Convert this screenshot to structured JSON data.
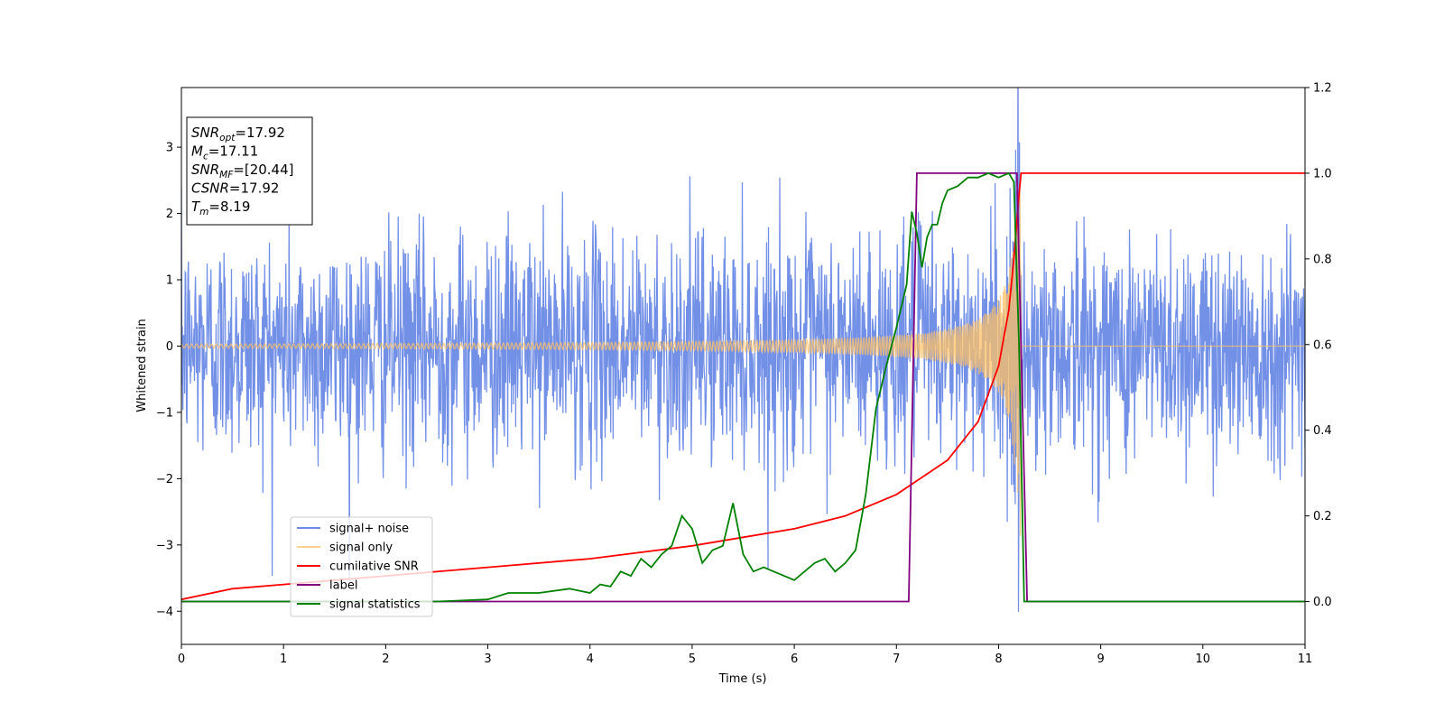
{
  "chart_data": {
    "type": "line",
    "xlabel": "Time (s)",
    "ylabel": "Whitened strain",
    "xlim": [
      0,
      11
    ],
    "ylim": [
      -4.5,
      3.9
    ],
    "y2lim": [
      -0.1,
      1.2
    ],
    "x_ticks": [
      "0",
      "1",
      "2",
      "3",
      "4",
      "5",
      "6",
      "7",
      "8",
      "9",
      "10",
      "11"
    ],
    "y_ticks": [
      "−4",
      "−3",
      "−2",
      "−1",
      "0",
      "1",
      "2",
      "3"
    ],
    "y2_ticks": [
      "0.0",
      "0.2",
      "0.4",
      "0.6",
      "0.8",
      "1.0",
      "1.2"
    ],
    "grid": false,
    "legend_position": "lower-left",
    "annotation": {
      "lines": [
        {
          "sym": "SNR",
          "sub": "opt",
          "rest": "=17.92"
        },
        {
          "sym": "M",
          "sub": "c",
          "rest": "=17.11"
        },
        {
          "sym": "SNR",
          "sub": "MF",
          "rest": "=[20.44]"
        },
        {
          "sym": "CSNR",
          "sub": "",
          "rest": "=17.92"
        },
        {
          "sym": "T",
          "sub": "m",
          "rest": "=8.19"
        }
      ]
    },
    "series": [
      {
        "name": "signal+ noise",
        "color": "#6b8ae6",
        "axis": "left",
        "description": "white noise, std ~1, range about -4.2 to 3.5, plus the chirp signal",
        "sigma": 0.85,
        "t_end": 11
      },
      {
        "name": "signal only",
        "color": "#ffc266",
        "axis": "left",
        "chirp_merger_time": 8.22,
        "amp_start": 0.03,
        "amp_peak": 2.9
      },
      {
        "name": "cumilative SNR",
        "color": "#ff0000",
        "axis": "right",
        "x": [
          0,
          0.5,
          1,
          2,
          3,
          4,
          5,
          5.5,
          6,
          6.5,
          7,
          7.5,
          7.8,
          8.0,
          8.1,
          8.15,
          8.2,
          8.22,
          11
        ],
        "y": [
          0.005,
          0.03,
          0.04,
          0.06,
          0.08,
          0.1,
          0.13,
          0.15,
          0.17,
          0.2,
          0.25,
          0.33,
          0.42,
          0.55,
          0.68,
          0.8,
          0.95,
          1.0,
          1.0
        ]
      },
      {
        "name": "label",
        "color": "#800080",
        "axis": "right",
        "x": [
          0,
          7.12,
          7.2,
          8.18,
          8.28,
          11
        ],
        "y": [
          0,
          0,
          1,
          1,
          0,
          0
        ]
      },
      {
        "name": "signal statistics",
        "color": "#008000",
        "axis": "right",
        "x": [
          0,
          2.5,
          3.0,
          3.2,
          3.5,
          3.8,
          4.0,
          4.1,
          4.2,
          4.3,
          4.4,
          4.5,
          4.6,
          4.7,
          4.8,
          4.9,
          5.0,
          5.1,
          5.2,
          5.3,
          5.4,
          5.5,
          5.6,
          5.7,
          5.8,
          5.9,
          6.0,
          6.1,
          6.2,
          6.3,
          6.4,
          6.5,
          6.6,
          6.7,
          6.8,
          6.9,
          7.0,
          7.1,
          7.15,
          7.2,
          7.25,
          7.3,
          7.35,
          7.4,
          7.45,
          7.5,
          7.6,
          7.7,
          7.8,
          7.9,
          8.0,
          8.1,
          8.15,
          8.2,
          8.25,
          8.3,
          11
        ],
        "y": [
          0.0,
          0.0,
          0.005,
          0.02,
          0.02,
          0.03,
          0.02,
          0.04,
          0.035,
          0.07,
          0.06,
          0.1,
          0.08,
          0.11,
          0.13,
          0.2,
          0.17,
          0.09,
          0.12,
          0.13,
          0.23,
          0.11,
          0.07,
          0.08,
          0.07,
          0.06,
          0.05,
          0.07,
          0.09,
          0.1,
          0.07,
          0.09,
          0.12,
          0.25,
          0.45,
          0.55,
          0.64,
          0.74,
          0.91,
          0.86,
          0.78,
          0.85,
          0.88,
          0.88,
          0.93,
          0.96,
          0.97,
          0.99,
          0.99,
          1.0,
          0.99,
          1.0,
          0.98,
          0.6,
          0.0,
          0.0,
          0.0
        ]
      }
    ]
  }
}
